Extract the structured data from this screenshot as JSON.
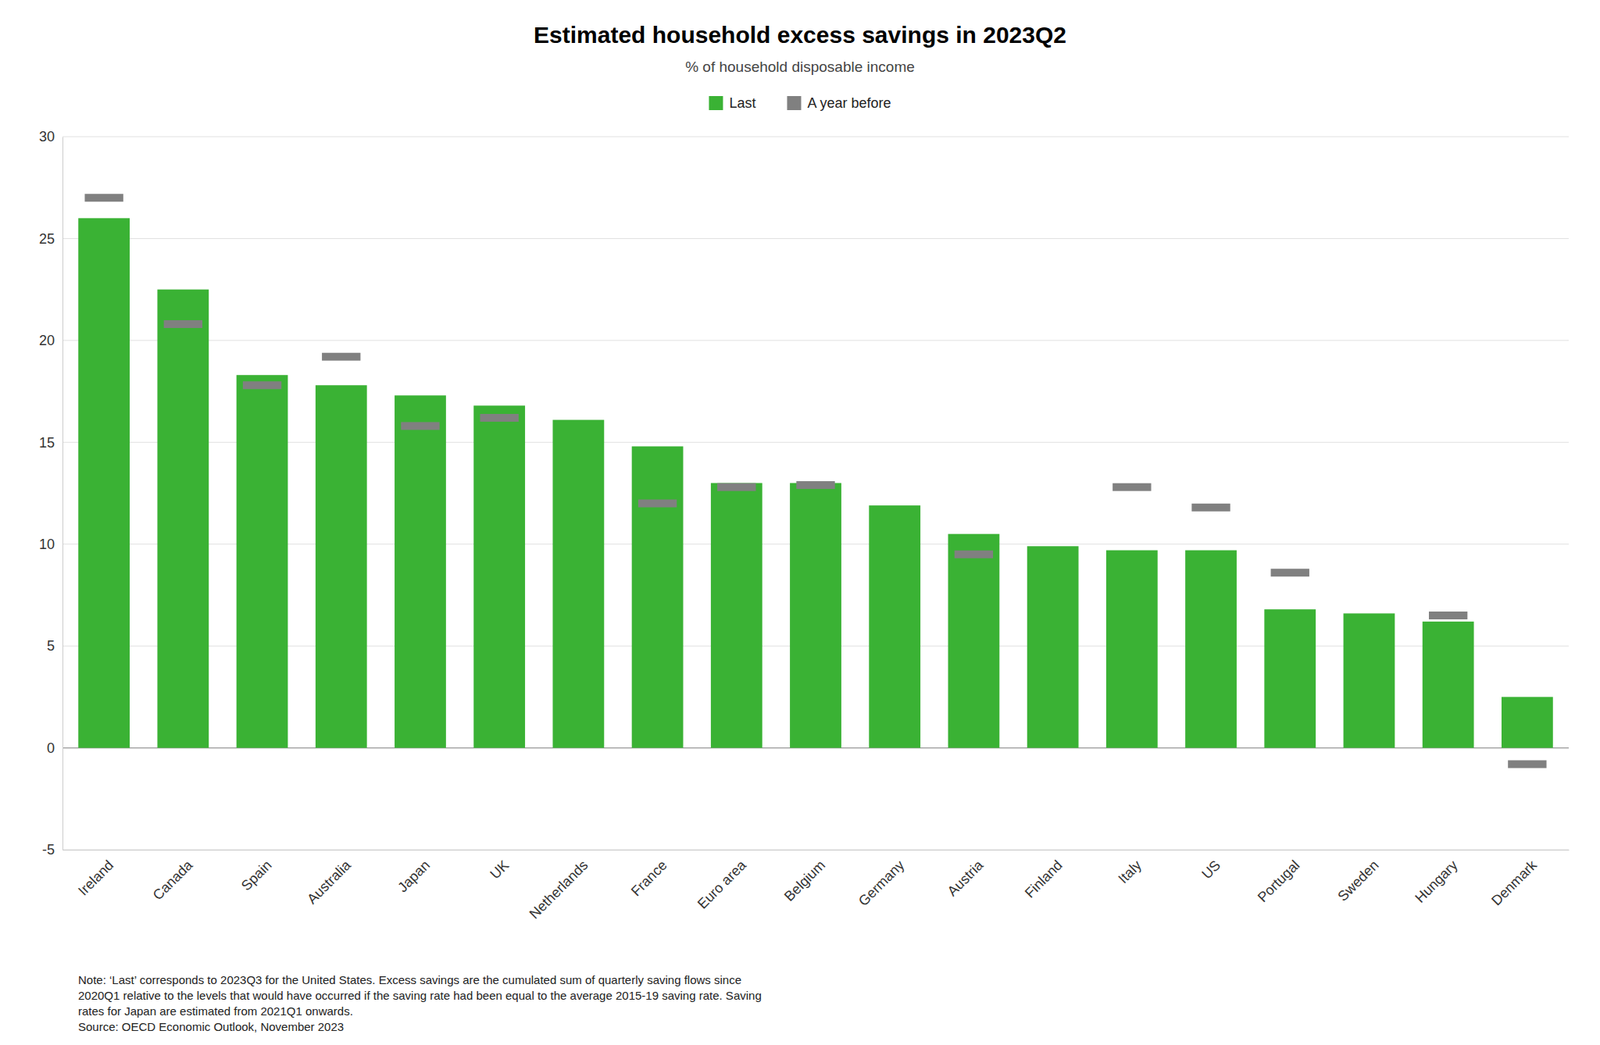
{
  "chart_data": {
    "type": "bar",
    "title": "Estimated household excess savings in 2023Q2",
    "subtitle": "% of household disposable income",
    "categories": [
      "Ireland",
      "Canada",
      "Spain",
      "Australia",
      "Japan",
      "UK",
      "Netherlands",
      "France",
      "Euro area",
      "Belgium",
      "Germany",
      "Austria",
      "Finland",
      "Italy",
      "US",
      "Portugal",
      "Sweden",
      "Hungary",
      "Denmark"
    ],
    "series": [
      {
        "name": "Last",
        "type": "bar",
        "color": "#3ab234",
        "values": [
          26.0,
          22.5,
          18.3,
          17.8,
          17.3,
          16.8,
          16.1,
          14.8,
          13.0,
          13.0,
          11.9,
          10.5,
          9.9,
          9.7,
          9.7,
          6.8,
          6.6,
          6.2,
          2.5
        ]
      },
      {
        "name": "A year before",
        "type": "scatter",
        "marker": "square",
        "color": "#808080",
        "values": [
          27.0,
          20.8,
          17.8,
          19.2,
          15.8,
          16.2,
          null,
          12.0,
          12.8,
          12.9,
          null,
          9.5,
          null,
          12.8,
          11.8,
          8.6,
          null,
          6.5,
          -0.8
        ]
      }
    ],
    "ylim": [
      -5,
      30
    ],
    "yticks": [
      -5,
      0,
      5,
      10,
      15,
      20,
      25,
      30
    ],
    "grid": true,
    "legend": "top",
    "notes": [
      "Note: ‘Last’ corresponds to 2023Q3 for the United States. Excess savings are the cumulated sum of quarterly saving flows since",
      "2020Q1 relative to the levels that would have occurred if the saving rate had been equal to the average 2015-19 saving rate. Saving",
      "rates for Japan are estimated from 2021Q1 onwards."
    ],
    "source": "Source: OECD Economic Outlook, November 2023"
  }
}
